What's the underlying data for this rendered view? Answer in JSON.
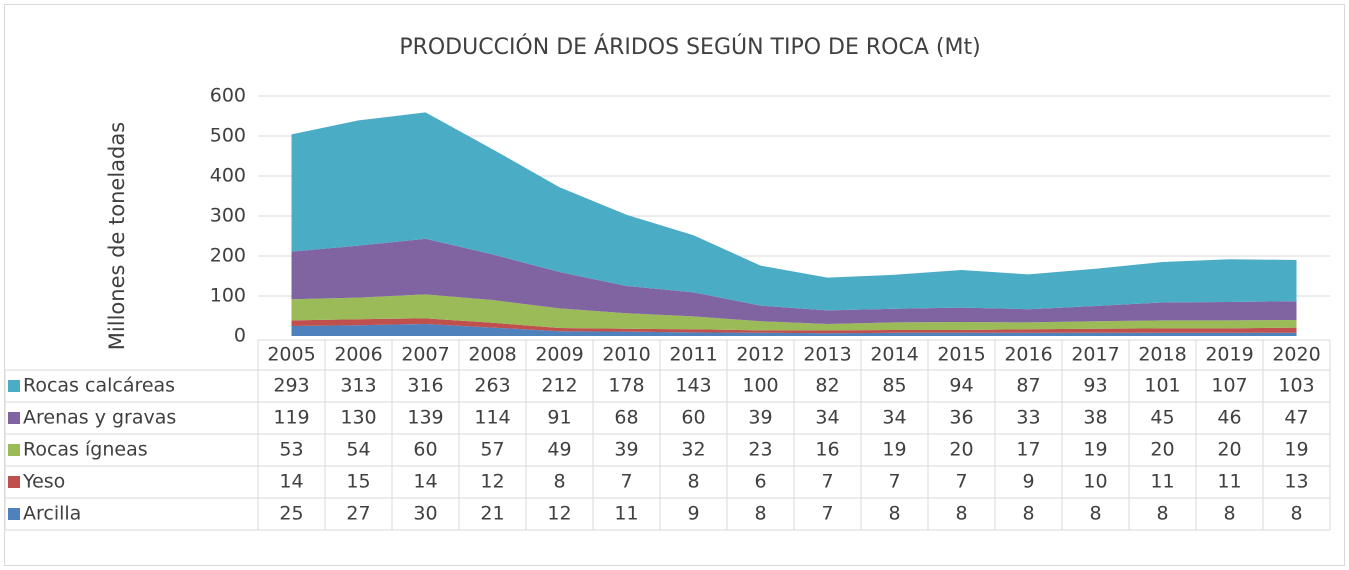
{
  "chart_data": {
    "type": "stacked_area",
    "title": "PRODUCCIÓN DE ÁRIDOS SEGÚN TIPO DE ROCA (Mt)",
    "y_label": "Millones de toneladas",
    "categories": [
      "2005",
      "2006",
      "2007",
      "2008",
      "2009",
      "2010",
      "2011",
      "2012",
      "2013",
      "2014",
      "2015",
      "2016",
      "2017",
      "2018",
      "2019",
      "2020"
    ],
    "series": [
      {
        "name": "Rocas calcáreas",
        "color": "#4bacc6",
        "values": [
          293,
          313,
          316,
          263,
          212,
          178,
          143,
          100,
          82,
          85,
          94,
          87,
          93,
          101,
          107,
          103
        ]
      },
      {
        "name": "Arenas y gravas",
        "color": "#8064a2",
        "values": [
          119,
          130,
          139,
          114,
          91,
          68,
          60,
          39,
          34,
          34,
          36,
          33,
          38,
          45,
          46,
          47
        ]
      },
      {
        "name": "Rocas ígneas",
        "color": "#9bbb59",
        "values": [
          53,
          54,
          60,
          57,
          49,
          39,
          32,
          23,
          16,
          19,
          20,
          17,
          19,
          20,
          20,
          19
        ]
      },
      {
        "name": "Yeso",
        "color": "#c0504d",
        "values": [
          14,
          15,
          14,
          12,
          8,
          7,
          8,
          6,
          7,
          7,
          7,
          9,
          10,
          11,
          11,
          13
        ]
      },
      {
        "name": "Arcilla",
        "color": "#4f81bd",
        "values": [
          25,
          27,
          30,
          21,
          12,
          11,
          9,
          8,
          7,
          8,
          8,
          8,
          8,
          8,
          8,
          8
        ]
      }
    ],
    "ylim": [
      0,
      600
    ],
    "yticks": [
      0,
      100,
      200,
      300,
      400,
      500,
      600
    ],
    "grid": true
  }
}
